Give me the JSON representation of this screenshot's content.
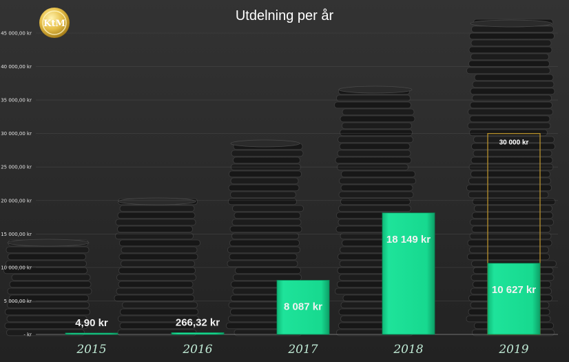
{
  "chart_data": {
    "type": "bar",
    "title": "Utdelning per år",
    "categories": [
      "2015",
      "2016",
      "2017",
      "2018",
      "2019"
    ],
    "values": [
      4.9,
      266.32,
      8087,
      18149,
      10627
    ],
    "value_labels": [
      "4,90 kr",
      "266,32 kr",
      "8 087 kr",
      "18 149 kr",
      "10 627 kr"
    ],
    "ylim": [
      0,
      45000
    ],
    "yticks": [
      0,
      5000,
      10000,
      15000,
      20000,
      25000,
      30000,
      35000,
      40000,
      45000
    ],
    "ytick_labels": [
      " -   kr",
      "5 000,00 kr",
      "10 000,00 kr",
      "15 000,00 kr",
      "20 000,00 kr",
      "25 000,00 kr",
      "30 000,00 kr",
      "35 000,00 kr",
      "40 000,00 kr",
      "45 000,00 kr"
    ],
    "grid": true,
    "legend": "none",
    "target": {
      "category": "2019",
      "value": 30000,
      "label": "30 000 kr"
    },
    "bar_color": "#17d98f",
    "target_outline_color": "#b8912b",
    "background": "coin-stacks"
  },
  "logo": {
    "text": "KtM"
  }
}
